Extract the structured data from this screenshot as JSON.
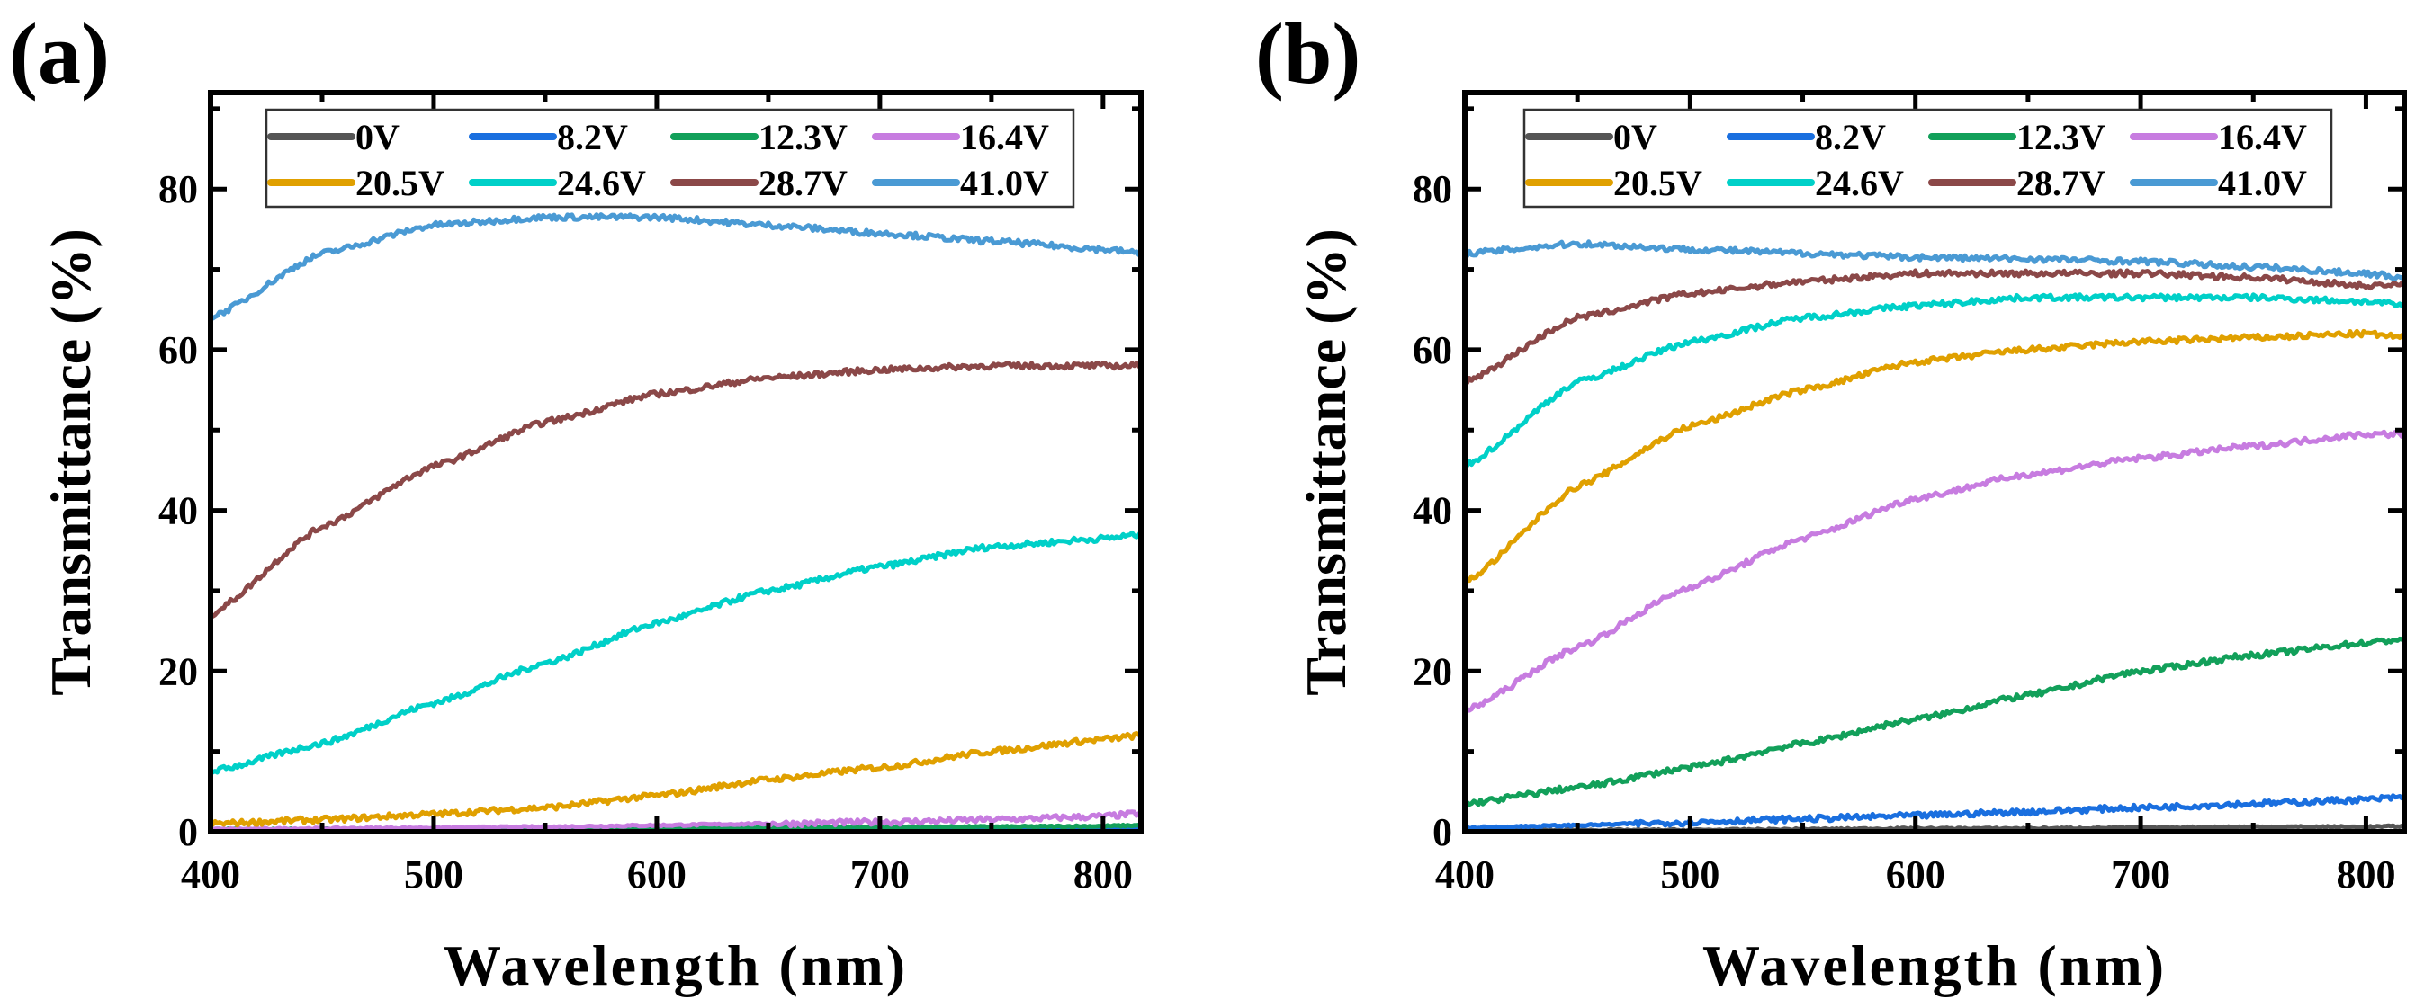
{
  "chart_data": [
    {
      "type": "line",
      "panel_label": "(a)",
      "xlabel": "Wavelength (nm)",
      "ylabel": "Transmittance (%)",
      "xlim": [
        400,
        817
      ],
      "ylim": [
        0,
        92
      ],
      "xticks": [
        400,
        500,
        600,
        700,
        800
      ],
      "yticks": [
        0,
        20,
        40,
        60,
        80
      ],
      "legend_placement": "top",
      "x": [
        400,
        450,
        500,
        550,
        600,
        650,
        700,
        750,
        800,
        817
      ],
      "series": [
        {
          "name": "0V",
          "color": "#555555",
          "values": [
            0.1,
            0.1,
            0.1,
            0.1,
            0.1,
            0.1,
            0.2,
            0.2,
            0.2,
            0.2
          ]
        },
        {
          "name": "8.2V",
          "color": "#1a6fdf",
          "values": [
            0.2,
            0.2,
            0.2,
            0.2,
            0.3,
            0.3,
            0.3,
            0.3,
            0.4,
            0.4
          ]
        },
        {
          "name": "12.3V",
          "color": "#12a05a",
          "values": [
            0.3,
            0.3,
            0.3,
            0.4,
            0.4,
            0.5,
            0.6,
            0.6,
            0.7,
            0.8
          ]
        },
        {
          "name": "16.4V",
          "color": "#c77ce0",
          "values": [
            0.3,
            0.4,
            0.5,
            0.6,
            0.8,
            1.0,
            1.2,
            1.5,
            1.9,
            2.3
          ]
        },
        {
          "name": "20.5V",
          "color": "#e0a000",
          "values": [
            1.0,
            1.5,
            2.2,
            3.0,
            4.5,
            6.5,
            8.0,
            10.0,
            11.5,
            12.0
          ]
        },
        {
          "name": "24.6V",
          "color": "#00d0c8",
          "values": [
            7.5,
            11,
            16,
            21,
            26,
            30,
            33,
            35.5,
            36.5,
            37
          ]
        },
        {
          "name": "28.7V",
          "color": "#8b4848",
          "values": [
            27,
            38,
            45.5,
            51,
            54.5,
            56.5,
            57.5,
            58,
            58,
            58
          ]
        },
        {
          "name": "41.0V",
          "color": "#4a9ad4",
          "values": [
            64,
            72,
            75.5,
            76.5,
            76.5,
            75.5,
            74.5,
            73.5,
            72.5,
            72
          ]
        }
      ]
    },
    {
      "type": "line",
      "panel_label": "(b)",
      "xlabel": "Wavelength (nm)",
      "ylabel": "Transmittance (%)",
      "xlim": [
        400,
        817
      ],
      "ylim": [
        0,
        92
      ],
      "xticks": [
        400,
        500,
        600,
        700,
        800
      ],
      "yticks": [
        0,
        20,
        40,
        60,
        80
      ],
      "legend_placement": "top",
      "x": [
        400,
        450,
        500,
        550,
        600,
        650,
        700,
        750,
        800,
        817
      ],
      "series": [
        {
          "name": "0V",
          "color": "#555555",
          "values": [
            0.1,
            0.2,
            0.2,
            0.3,
            0.4,
            0.4,
            0.5,
            0.6,
            0.6,
            0.7
          ]
        },
        {
          "name": "8.2V",
          "color": "#1a6fdf",
          "values": [
            0.5,
            0.8,
            1.2,
            1.6,
            2.0,
            2.5,
            3.0,
            3.5,
            4.0,
            4.3
          ]
        },
        {
          "name": "12.3V",
          "color": "#12a05a",
          "values": [
            3.5,
            5.5,
            8,
            11,
            14,
            17,
            20,
            22,
            23.5,
            24
          ]
        },
        {
          "name": "16.4V",
          "color": "#c77ce0",
          "values": [
            15,
            23,
            30.5,
            36.5,
            41.5,
            44.5,
            46.5,
            48,
            49.5,
            49.5
          ]
        },
        {
          "name": "20.5V",
          "color": "#e0a000",
          "values": [
            31,
            43,
            50.5,
            55,
            58.5,
            60,
            61,
            61.5,
            62,
            61.5
          ]
        },
        {
          "name": "24.6V",
          "color": "#00d0c8",
          "values": [
            45.5,
            56,
            61,
            64,
            65.5,
            66.5,
            66.5,
            66.5,
            66,
            65.5
          ]
        },
        {
          "name": "28.7V",
          "color": "#8b4848",
          "values": [
            56,
            64,
            67,
            68.5,
            69.5,
            69.5,
            69.5,
            69,
            68,
            68
          ]
        },
        {
          "name": "41.0V",
          "color": "#4a9ad4",
          "values": [
            72,
            73.2,
            72.5,
            72,
            71.5,
            71.3,
            71,
            70.3,
            69.5,
            69
          ]
        }
      ]
    }
  ]
}
